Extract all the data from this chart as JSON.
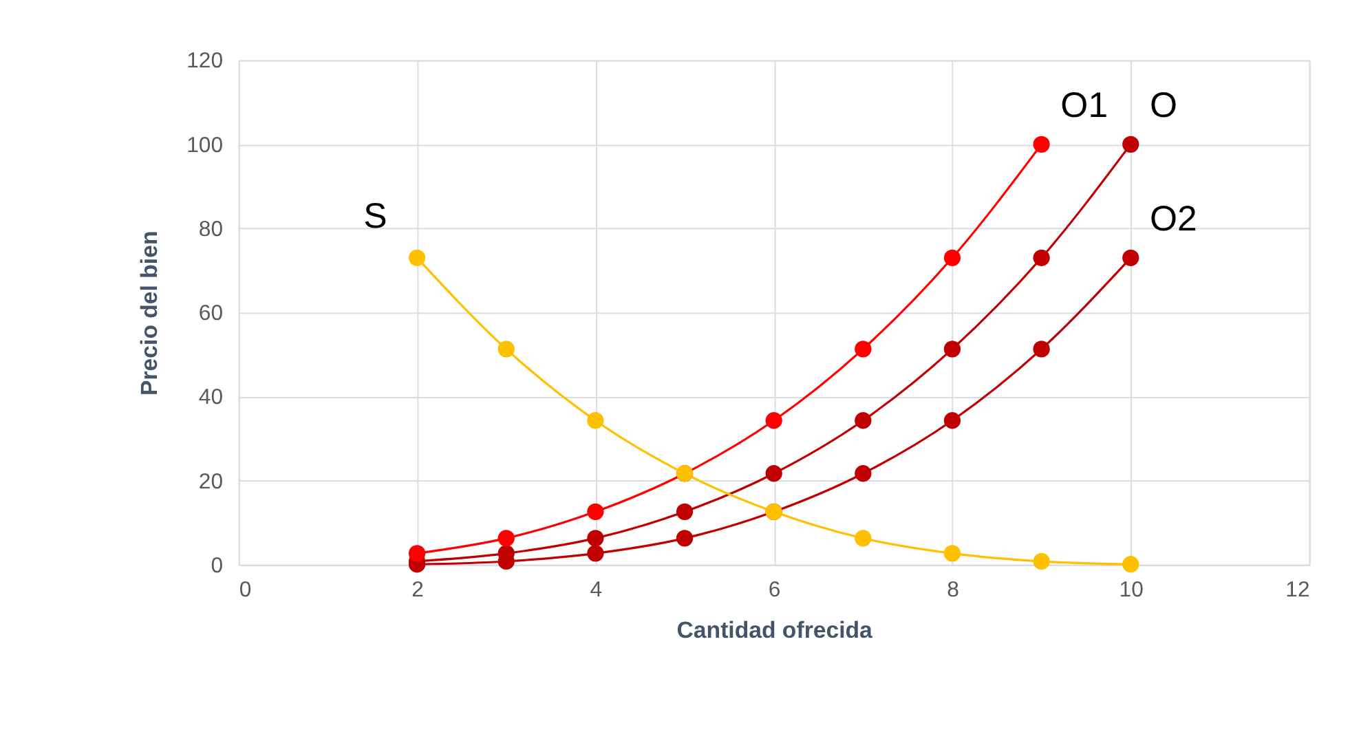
{
  "chart_data": {
    "type": "line",
    "xlabel": "Cantidad ofrecida",
    "ylabel": "Precio del bien",
    "xlim": [
      0,
      12
    ],
    "xticks": [
      0,
      2,
      4,
      6,
      8,
      10,
      12
    ],
    "ylim": [
      0,
      120
    ],
    "yticks": [
      0,
      20,
      40,
      60,
      80,
      100,
      120
    ],
    "grid": true,
    "marker": "circle",
    "line_style": "solid",
    "series": [
      {
        "name": "S",
        "color": "#ffc000",
        "x": [
          2,
          3,
          4,
          5,
          6,
          7,
          8,
          9,
          10
        ],
        "values": [
          73,
          51.3,
          34.3,
          21.7,
          12.6,
          6.3,
          2.7,
          0.8,
          0.1
        ]
      },
      {
        "name": "O1",
        "color": "#ff0000",
        "x": [
          2,
          3,
          4,
          5,
          6,
          7,
          8,
          9
        ],
        "values": [
          2.7,
          6.3,
          12.6,
          21.7,
          34.3,
          51.3,
          73,
          100
        ]
      },
      {
        "name": "O",
        "color": "#c00000",
        "x": [
          2,
          3,
          4,
          5,
          6,
          7,
          8,
          9,
          10
        ],
        "values": [
          0.8,
          2.7,
          6.3,
          12.6,
          21.7,
          34.3,
          51.3,
          73,
          100
        ]
      },
      {
        "name": "O2",
        "color": "#c00000",
        "x": [
          2,
          3,
          4,
          5,
          6,
          7,
          8,
          9,
          10
        ],
        "values": [
          0.1,
          0.8,
          2.7,
          6.3,
          12.6,
          21.7,
          34.3,
          51.3,
          73
        ]
      }
    ]
  }
}
